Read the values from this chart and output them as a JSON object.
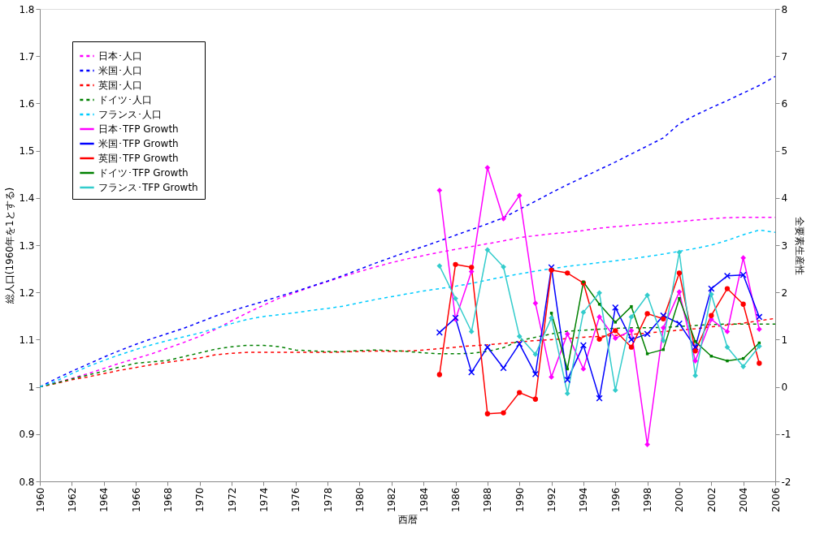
{
  "chart_data": {
    "type": "line",
    "xlabel": "西暦",
    "ylabel": "総人口(1960年を1とする)",
    "y2label": "全要素生産性",
    "x": [
      1960,
      1961,
      1962,
      1963,
      1964,
      1965,
      1966,
      1967,
      1968,
      1969,
      1970,
      1971,
      1972,
      1973,
      1974,
      1975,
      1976,
      1977,
      1978,
      1979,
      1980,
      1981,
      1982,
      1983,
      1984,
      1985,
      1986,
      1987,
      1988,
      1989,
      1990,
      1991,
      1992,
      1993,
      1994,
      1995,
      1996,
      1997,
      1998,
      1999,
      2000,
      2001,
      2002,
      2003,
      2004,
      2005,
      2006
    ],
    "xlim": [
      1960,
      2006
    ],
    "xticks": [
      1960,
      1962,
      1964,
      1966,
      1968,
      1970,
      1972,
      1974,
      1976,
      1978,
      1980,
      1982,
      1984,
      1986,
      1988,
      1990,
      1992,
      1994,
      1996,
      1998,
      2000,
      2002,
      2004,
      2006
    ],
    "ylim": [
      0.8,
      1.8
    ],
    "yticks": [
      0.8,
      0.9,
      1,
      1.1,
      1.2,
      1.3,
      1.4,
      1.5,
      1.6,
      1.7,
      1.8
    ],
    "y2lim": [
      -2,
      8
    ],
    "y2ticks": [
      -2,
      -1,
      0,
      1,
      2,
      3,
      4,
      5,
      6,
      7,
      8
    ],
    "grid": false,
    "legend": "top left",
    "series": [
      {
        "name": "日本･人口",
        "color": "#ff00ff",
        "line_style": "dashed",
        "marker": "none",
        "values": [
          1.0,
          1.009,
          1.018,
          1.028,
          1.039,
          1.05,
          1.06,
          1.07,
          1.082,
          1.094,
          1.107,
          1.122,
          1.14,
          1.157,
          1.173,
          1.188,
          1.2,
          1.212,
          1.223,
          1.234,
          1.244,
          1.254,
          1.263,
          1.271,
          1.278,
          1.285,
          1.291,
          1.297,
          1.303,
          1.309,
          1.316,
          1.32,
          1.324,
          1.327,
          1.331,
          1.336,
          1.339,
          1.342,
          1.345,
          1.347,
          1.35,
          1.353,
          1.356,
          1.358,
          1.359,
          1.359,
          1.359
        ]
      },
      {
        "name": "米国･人口",
        "color": "#0000ff",
        "line_style": "dashed",
        "marker": "none",
        "values": [
          1.0,
          1.017,
          1.033,
          1.048,
          1.063,
          1.077,
          1.09,
          1.102,
          1.113,
          1.124,
          1.137,
          1.15,
          1.161,
          1.171,
          1.181,
          1.192,
          1.202,
          1.213,
          1.224,
          1.236,
          1.249,
          1.262,
          1.274,
          1.286,
          1.297,
          1.309,
          1.321,
          1.333,
          1.345,
          1.358,
          1.376,
          1.393,
          1.411,
          1.428,
          1.444,
          1.46,
          1.476,
          1.493,
          1.51,
          1.527,
          1.557,
          1.575,
          1.591,
          1.606,
          1.622,
          1.638,
          1.657
        ]
      },
      {
        "name": "英国･人口",
        "color": "#ff0000",
        "line_style": "dashed",
        "marker": "none",
        "values": [
          1.0,
          1.007,
          1.015,
          1.021,
          1.028,
          1.035,
          1.041,
          1.047,
          1.052,
          1.057,
          1.061,
          1.068,
          1.071,
          1.073,
          1.073,
          1.073,
          1.073,
          1.073,
          1.073,
          1.074,
          1.075,
          1.076,
          1.075,
          1.076,
          1.078,
          1.081,
          1.084,
          1.087,
          1.089,
          1.092,
          1.095,
          1.098,
          1.1,
          1.102,
          1.105,
          1.107,
          1.109,
          1.111,
          1.114,
          1.117,
          1.12,
          1.123,
          1.127,
          1.131,
          1.135,
          1.14,
          1.145
        ]
      },
      {
        "name": "ドイツ･人口",
        "color": "#008000",
        "line_style": "dashed",
        "marker": "none",
        "values": [
          1.0,
          1.008,
          1.017,
          1.025,
          1.033,
          1.042,
          1.05,
          1.053,
          1.056,
          1.064,
          1.072,
          1.08,
          1.085,
          1.088,
          1.088,
          1.085,
          1.078,
          1.076,
          1.075,
          1.075,
          1.077,
          1.078,
          1.077,
          1.075,
          1.072,
          1.07,
          1.07,
          1.071,
          1.075,
          1.083,
          1.098,
          1.105,
          1.112,
          1.118,
          1.12,
          1.122,
          1.124,
          1.125,
          1.125,
          1.126,
          1.128,
          1.13,
          1.132,
          1.133,
          1.133,
          1.133,
          1.133
        ]
      },
      {
        "name": "フランス･人口",
        "color": "#00ccff",
        "line_style": "dashed",
        "marker": "none",
        "values": [
          1.0,
          1.012,
          1.028,
          1.043,
          1.056,
          1.068,
          1.079,
          1.089,
          1.098,
          1.106,
          1.114,
          1.124,
          1.134,
          1.143,
          1.149,
          1.153,
          1.157,
          1.162,
          1.166,
          1.171,
          1.178,
          1.185,
          1.191,
          1.197,
          1.203,
          1.208,
          1.213,
          1.219,
          1.226,
          1.233,
          1.239,
          1.245,
          1.25,
          1.255,
          1.259,
          1.263,
          1.267,
          1.271,
          1.276,
          1.281,
          1.287,
          1.293,
          1.3,
          1.31,
          1.322,
          1.332,
          1.327
        ]
      },
      {
        "name": "日本･TFP Growth",
        "color": "#ff00ff",
        "axis": "y2",
        "line_style": "solid",
        "marker": "diamond",
        "x": [
          1985,
          1986,
          1987,
          1988,
          1989,
          1990,
          1991,
          1992,
          1993,
          1994,
          1995,
          1996,
          1997,
          1998,
          1999,
          2000,
          2001,
          2002,
          2003,
          2004,
          2005
        ],
        "values": [
          4.16,
          1.43,
          2.44,
          4.64,
          3.56,
          4.05,
          1.77,
          0.21,
          1.12,
          0.38,
          1.48,
          1.03,
          1.19,
          -1.22,
          1.25,
          2.01,
          0.55,
          1.43,
          1.17,
          2.73,
          1.22
        ]
      },
      {
        "name": "米国･TFP Growth",
        "color": "#0000ff",
        "axis": "y2",
        "line_style": "solid",
        "marker": "cross",
        "x": [
          1985,
          1986,
          1987,
          1988,
          1989,
          1990,
          1991,
          1992,
          1993,
          1994,
          1995,
          1996,
          1997,
          1998,
          1999,
          2000,
          2001,
          2002,
          2003,
          2004,
          2005
        ],
        "values": [
          1.15,
          1.46,
          0.31,
          0.84,
          0.4,
          0.91,
          0.27,
          2.53,
          0.15,
          0.88,
          -0.24,
          1.68,
          1.0,
          1.12,
          1.51,
          1.34,
          0.84,
          2.08,
          2.35,
          2.37,
          1.48
        ]
      },
      {
        "name": "英国･TFP Growth",
        "color": "#ff0000",
        "axis": "y2",
        "line_style": "solid",
        "marker": "circle",
        "x": [
          1985,
          1986,
          1987,
          1988,
          1989,
          1990,
          1991,
          1992,
          1993,
          1994,
          1995,
          1996,
          1997,
          1998,
          1999,
          2000,
          2001,
          2002,
          2003,
          2004,
          2005
        ],
        "values": [
          0.26,
          2.59,
          2.53,
          -0.57,
          -0.55,
          -0.12,
          -0.26,
          2.47,
          2.41,
          2.2,
          1.01,
          1.19,
          0.84,
          1.55,
          1.44,
          2.41,
          0.76,
          1.51,
          2.08,
          1.75,
          0.5
        ]
      },
      {
        "name": "ドイツ･TFP Growth",
        "color": "#008000",
        "axis": "y2",
        "line_style": "solid",
        "marker": "square",
        "x": [
          1992,
          1993,
          1994,
          1995,
          1996,
          1997,
          1998,
          1999,
          2000,
          2001,
          2002,
          2003,
          2004,
          2005
        ],
        "values": [
          1.56,
          0.38,
          2.22,
          1.75,
          1.37,
          1.7,
          0.7,
          0.79,
          1.87,
          0.96,
          0.65,
          0.55,
          0.6,
          0.93
        ]
      },
      {
        "name": "フランス･TFP Growth",
        "color": "#33cccc",
        "axis": "y2",
        "line_style": "solid",
        "marker": "diamond",
        "x": [
          1985,
          1986,
          1987,
          1988,
          1989,
          1990,
          1991,
          1992,
          1993,
          1994,
          1995,
          1996,
          1997,
          1998,
          1999,
          2000,
          2001,
          2002,
          2003,
          2004,
          2005
        ],
        "values": [
          2.56,
          1.87,
          1.17,
          2.9,
          2.54,
          1.07,
          0.69,
          1.46,
          -0.14,
          1.58,
          1.99,
          -0.07,
          1.48,
          1.94,
          0.98,
          2.85,
          0.24,
          1.96,
          0.84,
          0.43,
          0.86
        ]
      }
    ]
  }
}
